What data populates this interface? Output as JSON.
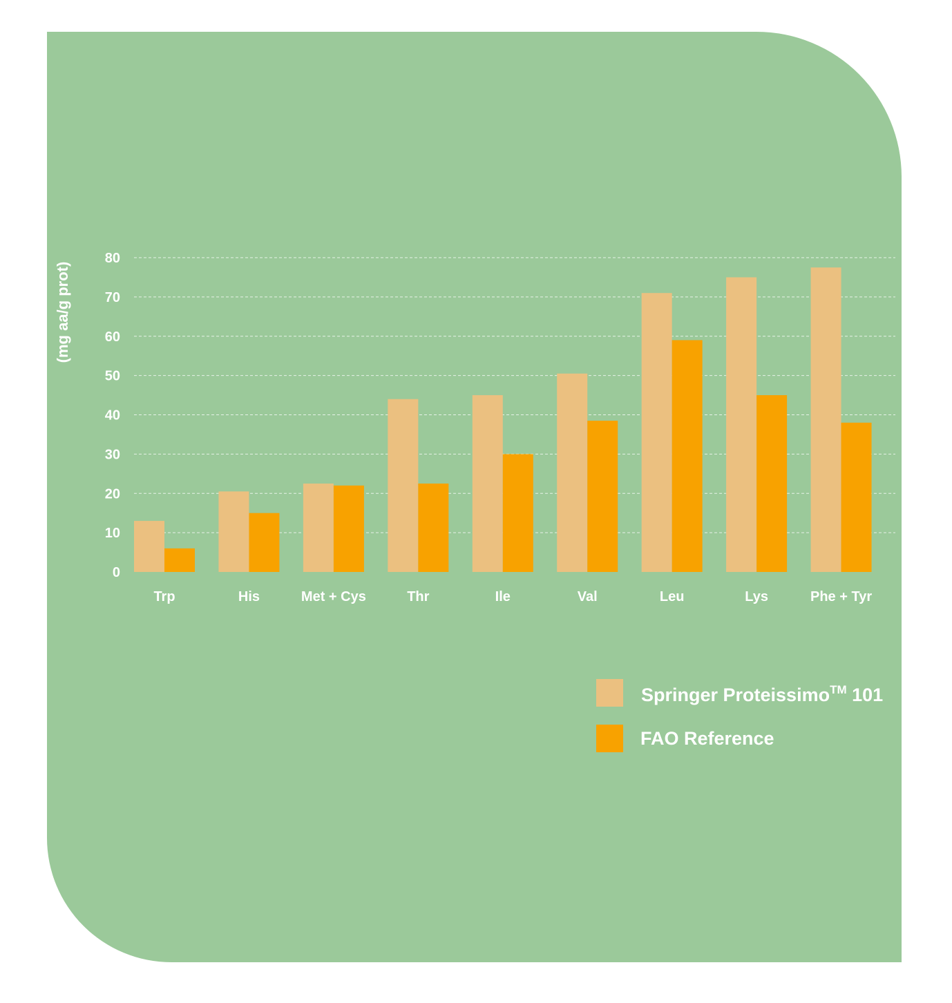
{
  "colors": {
    "panel": "#9bc99a",
    "series_springer": "#ebc080",
    "series_fao": "#f8a200",
    "text": "#ffffff"
  },
  "chart_data": {
    "type": "bar",
    "categories": [
      "Trp",
      "His",
      "Met + Cys",
      "Thr",
      "Ile",
      "Val",
      "Leu",
      "Lys",
      "Phe + Tyr"
    ],
    "series": [
      {
        "name": "Springer Proteissimo",
        "name_superscript": "TM",
        "name_suffix": " 101",
        "values": [
          13,
          20.5,
          22.5,
          44,
          45,
          50.5,
          71,
          75,
          77.5
        ]
      },
      {
        "name": "FAO Reference",
        "values": [
          6,
          15,
          22,
          22.5,
          30,
          38.5,
          59,
          45,
          38
        ]
      }
    ],
    "title": "",
    "xlabel": "",
    "ylabel": "(mg aa/g prot)",
    "ylim": [
      0,
      80
    ],
    "yticks": [
      0,
      10,
      20,
      30,
      40,
      50,
      60,
      70,
      80
    ],
    "grid": true,
    "legend": "bottom-right"
  }
}
